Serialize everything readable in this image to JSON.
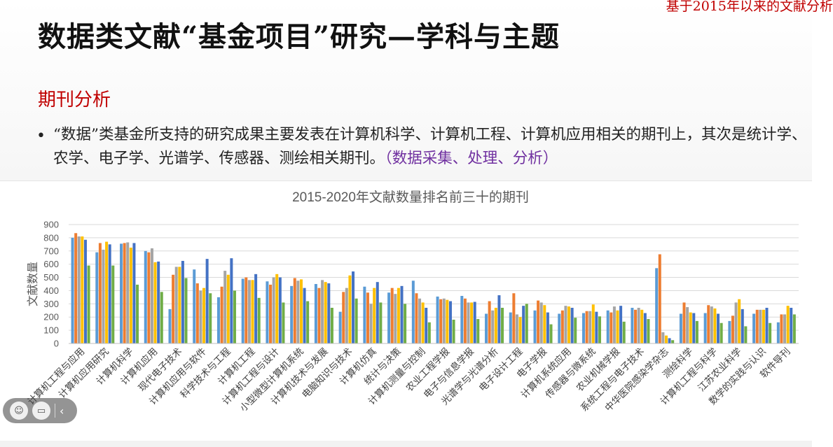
{
  "slide": {
    "corner_note": "基于2015年以来的文献分析",
    "title": "数据类文献“基金项目”研究—学科与主题",
    "section": "期刊分析",
    "bullet_main": "“数据”类基金所支持的研究成果主要发表在计算机科学、计算机工程、计算机应用相关的期刊上，其次是统计学、农学、电子学、光谱学、传感器、测绘相关期刊。",
    "bullet_highlight": "（数据采集、处理、分析）"
  },
  "toolbar": {
    "icons": [
      "emoji-icon",
      "comment-icon",
      "chevron-left-icon"
    ],
    "arrow": "‹"
  },
  "colors": {
    "title": "#111111",
    "accent_red": "#c00000",
    "highlight_purple": "#7030a0",
    "series": [
      "#5b9bd5",
      "#ed7d31",
      "#a5a5a5",
      "#ffc000",
      "#4472c4",
      "#70ad47"
    ]
  },
  "chart_data": {
    "type": "bar",
    "title": "2015-2020年文献数量排名前三十的期刊",
    "ylabel": "文献数量",
    "xlabel": "",
    "ylim": [
      0,
      900
    ],
    "yticks": [
      0,
      100,
      200,
      300,
      400,
      500,
      600,
      700,
      800,
      900
    ],
    "grid": true,
    "legend": "none",
    "categories": [
      "计算机工程与应用",
      "计算机应用研究",
      "计算机科学",
      "计算机应用",
      "现代电子技术",
      "计算机应用与软件",
      "科学技术与工程",
      "计算机工程",
      "计算机工程与设计",
      "小型微型计算机系统",
      "计算机技术与发展",
      "电脑知识与技术",
      "计算机仿真",
      "统计与决策",
      "计算机测量与控制",
      "农业工程学报",
      "电子与信息学报",
      "光谱学与光谱分析",
      "电子设计工程",
      "电子学报",
      "计算机系统应用",
      "传感器与微系统",
      "农业机械学报",
      "系统工程与电子技术",
      "中华医院感染学杂志",
      "测绘科学",
      "计算机工程与科学",
      "江苏农业科学",
      "数学的实践与认识",
      "软件导刊"
    ],
    "series": [
      {
        "values": [
          800,
          690,
          755,
          700,
          260,
          560,
          350,
          490,
          470,
          435,
          450,
          240,
          430,
          385,
          475,
          355,
          360,
          225,
          235,
          250,
          225,
          230,
          250,
          270,
          570,
          225,
          230,
          170,
          225,
          160
        ]
      },
      {
        "values": [
          835,
          760,
          760,
          690,
          520,
          455,
          430,
          500,
          445,
          495,
          420,
          390,
          385,
          420,
          380,
          335,
          340,
          320,
          380,
          325,
          250,
          245,
          235,
          255,
          675,
          310,
          290,
          210,
          255,
          220
        ]
      },
      {
        "values": [
          810,
          710,
          765,
          720,
          580,
          400,
          550,
          480,
          500,
          475,
          480,
          420,
          300,
          375,
          340,
          340,
          310,
          250,
          220,
          310,
          285,
          245,
          280,
          270,
          85,
          275,
          280,
          310,
          255,
          220
        ]
      },
      {
        "values": [
          810,
          770,
          725,
          615,
          580,
          420,
          520,
          480,
          525,
          485,
          465,
          515,
          420,
          420,
          310,
          330,
          310,
          270,
          200,
          290,
          280,
          295,
          250,
          255,
          60,
          235,
          265,
          335,
          255,
          285
        ]
      },
      {
        "values": [
          785,
          750,
          760,
          620,
          625,
          640,
          645,
          525,
          500,
          420,
          455,
          545,
          465,
          435,
          270,
          320,
          315,
          365,
          285,
          235,
          270,
          240,
          285,
          230,
          40,
          230,
          225,
          260,
          270,
          270
        ]
      },
      {
        "values": [
          590,
          590,
          445,
          390,
          495,
          380,
          400,
          345,
          310,
          320,
          270,
          340,
          310,
          300,
          160,
          180,
          185,
          270,
          300,
          145,
          195,
          205,
          165,
          185,
          25,
          170,
          155,
          130,
          155,
          220
        ]
      }
    ]
  }
}
